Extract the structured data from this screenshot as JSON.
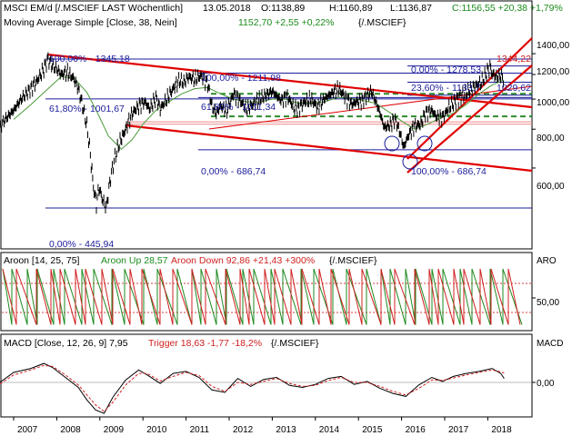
{
  "header": {
    "title": "MSCI EM/d [/.MSCIEF LAST Wöchentlich]",
    "date": "13.05.2018",
    "ohlc_open": "O:1138,89",
    "ohlc_high": "H:1160,89",
    "ohlc_low": "L:1136,87",
    "ohlc_close": "C:1156,55 +20,38 +1,79%",
    "ma_label": "Moving Average Simple [Close, 38, Nein]",
    "ma_value": "1152,70 +2,55 +0,22%",
    "ma_symbol": "{/.MSCIEF}",
    "aroon_label": "Aroon [14, 25, 75]",
    "aroon_up": "Aroon Up 28,57",
    "aroon_down": "Aroon Down 92,86 +21,43 +300%",
    "aroon_symbol": "{/.MSCIEF}",
    "macd_label": "MACD [Close, 12, 26, 9] 7,95",
    "macd_trigger": "Trigger 18,63 -1,77 -18,2%",
    "macd_symbol": "{/.MSCIEF}"
  },
  "right_axis": {
    "price_ticks": [
      "1400,00",
      "1200,00",
      "1000,00",
      "800,00",
      "600,00"
    ],
    "aroon_title": "ARO",
    "aroon_ticks": [
      "50,00"
    ],
    "macd_title": "MACD",
    "macd_ticks": [
      "0,00"
    ]
  },
  "fib_labels": {
    "a": "100,00% - 1345,18",
    "b": "61,80% - 1001,67",
    "c": "0,00% - 445,94",
    "d": "100,00% - 1211,98",
    "e": "61,80% - 1011,34",
    "f": "0,00% - 686,74",
    "g": "0,00% - 1278,53",
    "h": "23,60% - 1133,7",
    "i": "1029,62",
    "j": "100,00% - 686,74",
    "k": "1344,22"
  },
  "colors": {
    "price": "#000000",
    "ma": "#4a9a3a",
    "trend": "#e00000",
    "fib": "#1c1c9c",
    "support": "#2e8b2e",
    "aroon_up": "#1f8a1f",
    "aroon_down": "#d02020",
    "macd": "#000000",
    "trigger": "#d02020"
  },
  "chart_data": [
    {
      "type": "line",
      "x_years": [
        "2007",
        "2008",
        "2009",
        "2010",
        "2011",
        "2012",
        "2013",
        "2014",
        "2015",
        "2016",
        "2017",
        "2018"
      ],
      "series": [
        {
          "values": [
            [
              2006.6,
              780
            ],
            [
              2006.8,
              860
            ],
            [
              2007.0,
              920
            ],
            [
              2007.2,
              1010
            ],
            [
              2007.4,
              1080
            ],
            [
              2007.55,
              1150
            ],
            [
              2007.7,
              1250
            ],
            [
              2007.8,
              1345
            ],
            [
              2007.9,
              1280
            ],
            [
              2008.0,
              1250
            ],
            [
              2008.1,
              1200
            ],
            [
              2008.25,
              1220
            ],
            [
              2008.4,
              1160
            ],
            [
              2008.5,
              1080
            ],
            [
              2008.6,
              950
            ],
            [
              2008.7,
              820
            ],
            [
              2008.8,
              620
            ],
            [
              2008.85,
              520
            ],
            [
              2008.92,
              460
            ],
            [
              2008.98,
              520
            ],
            [
              2009.05,
              480
            ],
            [
              2009.15,
              446
            ],
            [
              2009.25,
              560
            ],
            [
              2009.35,
              650
            ],
            [
              2009.45,
              720
            ],
            [
              2009.6,
              800
            ],
            [
              2009.75,
              900
            ],
            [
              2009.9,
              950
            ],
            [
              2010.05,
              980
            ],
            [
              2010.15,
              930
            ],
            [
              2010.3,
              1010
            ],
            [
              2010.4,
              930
            ],
            [
              2010.55,
              1000
            ],
            [
              2010.7,
              1080
            ],
            [
              2010.85,
              1150
            ],
            [
              2010.95,
              1130
            ],
            [
              2011.05,
              1180
            ],
            [
              2011.2,
              1160
            ],
            [
              2011.35,
              1190
            ],
            [
              2011.5,
              1120
            ],
            [
              2011.6,
              950
            ],
            [
              2011.7,
              900
            ],
            [
              2011.8,
              950
            ],
            [
              2011.95,
              920
            ],
            [
              2012.1,
              1040
            ],
            [
              2012.25,
              990
            ],
            [
              2012.4,
              930
            ],
            [
              2012.55,
              960
            ],
            [
              2012.7,
              1000
            ],
            [
              2012.9,
              1040
            ],
            [
              2013.0,
              1060
            ],
            [
              2013.2,
              990
            ],
            [
              2013.35,
              1020
            ],
            [
              2013.5,
              940
            ],
            [
              2013.6,
              930
            ],
            [
              2013.75,
              980
            ],
            [
              2013.9,
              1000
            ],
            [
              2014.05,
              940
            ],
            [
              2014.2,
              1000
            ],
            [
              2014.4,
              1050
            ],
            [
              2014.55,
              1080
            ],
            [
              2014.7,
              1010
            ],
            [
              2014.85,
              960
            ],
            [
              2014.95,
              980
            ],
            [
              2015.1,
              990
            ],
            [
              2015.3,
              1060
            ],
            [
              2015.4,
              980
            ],
            [
              2015.5,
              900
            ],
            [
              2015.6,
              810
            ],
            [
              2015.7,
              820
            ],
            [
              2015.85,
              860
            ],
            [
              2015.95,
              790
            ],
            [
              2016.05,
              700
            ],
            [
              2016.15,
              760
            ],
            [
              2016.3,
              820
            ],
            [
              2016.45,
              830
            ],
            [
              2016.55,
              900
            ],
            [
              2016.7,
              920
            ],
            [
              2016.8,
              880
            ],
            [
              2016.95,
              870
            ],
            [
              2017.1,
              940
            ],
            [
              2017.3,
              1000
            ],
            [
              2017.5,
              1050
            ],
            [
              2017.7,
              1100
            ],
            [
              2017.85,
              1130
            ],
            [
              2017.95,
              1200
            ],
            [
              2018.05,
              1270
            ],
            [
              2018.1,
              1210
            ],
            [
              2018.2,
              1180
            ],
            [
              2018.3,
              1190
            ],
            [
              2018.38,
              1157
            ]
          ]
        },
        {
          "values": [
            [
              2007.0,
              860
            ],
            [
              2007.4,
              960
            ],
            [
              2007.8,
              1080
            ],
            [
              2008.1,
              1180
            ],
            [
              2008.4,
              1170
            ],
            [
              2008.7,
              1050
            ],
            [
              2008.95,
              900
            ],
            [
              2009.2,
              760
            ],
            [
              2009.5,
              690
            ],
            [
              2009.75,
              740
            ],
            [
              2010.0,
              830
            ],
            [
              2010.3,
              920
            ],
            [
              2010.6,
              980
            ],
            [
              2010.9,
              1040
            ],
            [
              2011.2,
              1080
            ],
            [
              2011.5,
              1090
            ],
            [
              2011.8,
              1040
            ],
            [
              2012.1,
              1000
            ],
            [
              2012.4,
              980
            ],
            [
              2012.7,
              980
            ],
            [
              2013.0,
              1000
            ],
            [
              2013.3,
              1000
            ],
            [
              2013.6,
              970
            ],
            [
              2013.9,
              970
            ],
            [
              2014.2,
              980
            ],
            [
              2014.5,
              1010
            ],
            [
              2014.8,
              1010
            ],
            [
              2015.1,
              990
            ],
            [
              2015.4,
              970
            ],
            [
              2015.7,
              910
            ],
            [
              2016.0,
              850
            ],
            [
              2016.3,
              800
            ],
            [
              2016.6,
              830
            ],
            [
              2016.9,
              870
            ],
            [
              2017.2,
              900
            ],
            [
              2017.5,
              960
            ],
            [
              2017.8,
              1040
            ],
            [
              2018.1,
              1110
            ],
            [
              2018.38,
              1153
            ]
          ]
        }
      ],
      "y_ticks": [
        1400,
        1200,
        1000,
        800,
        600
      ],
      "y_range": [
        430,
        1440
      ],
      "y_scale": "log",
      "fib_levels": [
        1345.18,
        1211.98,
        1278.53,
        1133.7,
        1029.62,
        1011.34,
        1001.67,
        686.74,
        445.94
      ],
      "support_levels": [
        1040,
        880
      ]
    },
    {
      "type": "line",
      "title": "Aroon [14, 25, 75]",
      "y_range": [
        0,
        100
      ],
      "y_ticks": [
        50
      ],
      "reference_levels": [
        25,
        75
      ],
      "series": [
        {
          "name": "Aroon Up",
          "last": 28.57
        },
        {
          "name": "Aroon Down",
          "last": 92.86
        }
      ]
    },
    {
      "type": "line",
      "title": "MACD [Close, 12, 26, 9]",
      "y_ticks": [
        0
      ],
      "y_range": [
        -70,
        50
      ],
      "series": [
        {
          "name": "MACD",
          "values": [
            [
              2006.6,
              -5
            ],
            [
              2007.0,
              20
            ],
            [
              2007.4,
              28
            ],
            [
              2007.7,
              38
            ],
            [
              2007.9,
              30
            ],
            [
              2008.2,
              10
            ],
            [
              2008.5,
              -10
            ],
            [
              2008.7,
              -35
            ],
            [
              2008.9,
              -55
            ],
            [
              2009.1,
              -62
            ],
            [
              2009.3,
              -30
            ],
            [
              2009.6,
              5
            ],
            [
              2009.9,
              25
            ],
            [
              2010.1,
              15
            ],
            [
              2010.4,
              -2
            ],
            [
              2010.7,
              18
            ],
            [
              2011.0,
              22
            ],
            [
              2011.3,
              10
            ],
            [
              2011.6,
              -15
            ],
            [
              2011.9,
              -20
            ],
            [
              2012.2,
              8
            ],
            [
              2012.5,
              -8
            ],
            [
              2012.8,
              6
            ],
            [
              2013.1,
              10
            ],
            [
              2013.4,
              -6
            ],
            [
              2013.7,
              -10
            ],
            [
              2014.0,
              -4
            ],
            [
              2014.3,
              8
            ],
            [
              2014.6,
              12
            ],
            [
              2014.9,
              -4
            ],
            [
              2015.2,
              2
            ],
            [
              2015.5,
              -12
            ],
            [
              2015.8,
              -22
            ],
            [
              2016.1,
              -28
            ],
            [
              2016.4,
              -5
            ],
            [
              2016.7,
              10
            ],
            [
              2016.95,
              2
            ],
            [
              2017.2,
              12
            ],
            [
              2017.5,
              18
            ],
            [
              2017.8,
              22
            ],
            [
              2018.1,
              28
            ],
            [
              2018.3,
              18
            ],
            [
              2018.38,
              8
            ]
          ]
        },
        {
          "name": "Trigger",
          "values": [
            [
              2006.6,
              -8
            ],
            [
              2007.0,
              15
            ],
            [
              2007.4,
              25
            ],
            [
              2007.7,
              34
            ],
            [
              2007.9,
              32
            ],
            [
              2008.2,
              15
            ],
            [
              2008.5,
              -5
            ],
            [
              2008.7,
              -25
            ],
            [
              2008.9,
              -45
            ],
            [
              2009.1,
              -58
            ],
            [
              2009.3,
              -40
            ],
            [
              2009.6,
              -5
            ],
            [
              2009.9,
              18
            ],
            [
              2010.1,
              18
            ],
            [
              2010.4,
              3
            ],
            [
              2010.7,
              12
            ],
            [
              2011.0,
              20
            ],
            [
              2011.3,
              14
            ],
            [
              2011.6,
              -8
            ],
            [
              2011.9,
              -18
            ],
            [
              2012.2,
              0
            ],
            [
              2012.5,
              -4
            ],
            [
              2012.8,
              2
            ],
            [
              2013.1,
              8
            ],
            [
              2013.4,
              -2
            ],
            [
              2013.7,
              -8
            ],
            [
              2014.0,
              -6
            ],
            [
              2014.3,
              4
            ],
            [
              2014.6,
              10
            ],
            [
              2014.9,
              0
            ],
            [
              2015.2,
              0
            ],
            [
              2015.5,
              -8
            ],
            [
              2015.8,
              -18
            ],
            [
              2016.1,
              -25
            ],
            [
              2016.4,
              -12
            ],
            [
              2016.7,
              5
            ],
            [
              2016.95,
              4
            ],
            [
              2017.2,
              9
            ],
            [
              2017.5,
              15
            ],
            [
              2017.8,
              20
            ],
            [
              2018.1,
              25
            ],
            [
              2018.3,
              21
            ],
            [
              2018.38,
              19
            ]
          ]
        }
      ]
    }
  ]
}
